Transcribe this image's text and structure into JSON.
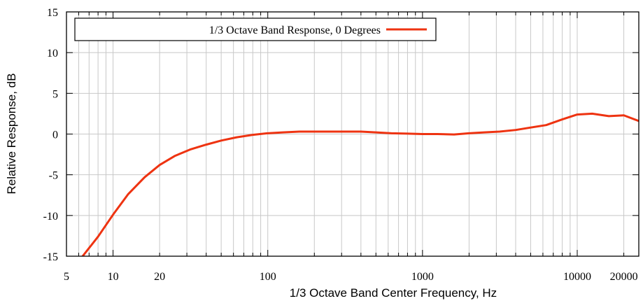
{
  "chart_data": {
    "type": "line",
    "title": "",
    "xlabel": "1/3 Octave Band Center Frequency, Hz",
    "ylabel": "Relative Response, dB",
    "x_scale": "log",
    "xlim": [
      5,
      25000
    ],
    "ylim": [
      -15,
      15
    ],
    "grid": true,
    "legend_position": "top-left",
    "x_ticks": [
      {
        "value": 5,
        "label": "5"
      },
      {
        "value": 10,
        "label": "10"
      },
      {
        "value": 20,
        "label": "20"
      },
      {
        "value": 100,
        "label": "100"
      },
      {
        "value": 1000,
        "label": "1000"
      },
      {
        "value": 10000,
        "label": "10000"
      },
      {
        "value": 20000,
        "label": "20000"
      }
    ],
    "y_ticks": [
      {
        "value": 15,
        "label": "15"
      },
      {
        "value": 10,
        "label": "10"
      },
      {
        "value": 5,
        "label": "5"
      },
      {
        "value": 0,
        "label": "0"
      },
      {
        "value": -5,
        "label": "-5"
      },
      {
        "value": -10,
        "label": "-10"
      },
      {
        "value": -15,
        "label": "-15"
      }
    ],
    "series": [
      {
        "name": "1/3 Octave Band Response, 0 Degrees",
        "color": "#ee3311",
        "x": [
          6.3,
          8,
          10,
          12.5,
          16,
          20,
          25,
          31.5,
          40,
          50,
          63,
          80,
          100,
          125,
          160,
          200,
          250,
          315,
          400,
          500,
          630,
          800,
          1000,
          1250,
          1600,
          2000,
          2500,
          3150,
          4000,
          5000,
          6300,
          8000,
          10000,
          12500,
          16000,
          20000,
          25000
        ],
        "y": [
          -15.1,
          -12.6,
          -9.9,
          -7.4,
          -5.3,
          -3.8,
          -2.7,
          -1.9,
          -1.3,
          -0.8,
          -0.4,
          -0.1,
          0.1,
          0.2,
          0.3,
          0.3,
          0.3,
          0.3,
          0.3,
          0.2,
          0.1,
          0.05,
          0.0,
          0.0,
          -0.05,
          0.1,
          0.2,
          0.3,
          0.5,
          0.8,
          1.1,
          1.8,
          2.4,
          2.5,
          2.2,
          2.3,
          1.6
        ]
      }
    ]
  }
}
